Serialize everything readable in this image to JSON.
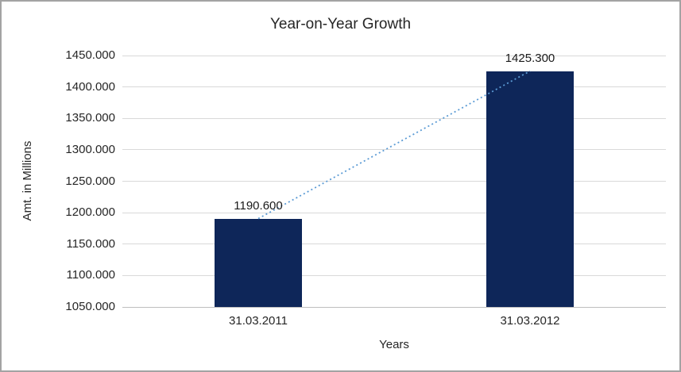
{
  "chart_data": {
    "type": "bar",
    "title": "Year-on-Year Growth",
    "xlabel": "Years",
    "ylabel": "Amt. in Millions",
    "categories": [
      "31.03.2011",
      "31.03.2012"
    ],
    "values": [
      1190.6,
      1425.3
    ],
    "value_labels": [
      "1190.600",
      "1425.300"
    ],
    "ylim": [
      1050,
      1450
    ],
    "ytick_step": 50,
    "ytick_labels": [
      "1050.000",
      "1100.000",
      "1150.000",
      "1200.000",
      "1250.000",
      "1300.000",
      "1350.000",
      "1400.000",
      "1450.000"
    ],
    "grid": true,
    "legend_position": "none",
    "bar_color": "#0e2659",
    "gridline_color": "#d9d9d9",
    "axis_line_color": "#bfbfbf",
    "text_color": "#262626",
    "trendline": {
      "type": "linear",
      "style": "dotted",
      "color": "#5b9bd5"
    }
  }
}
